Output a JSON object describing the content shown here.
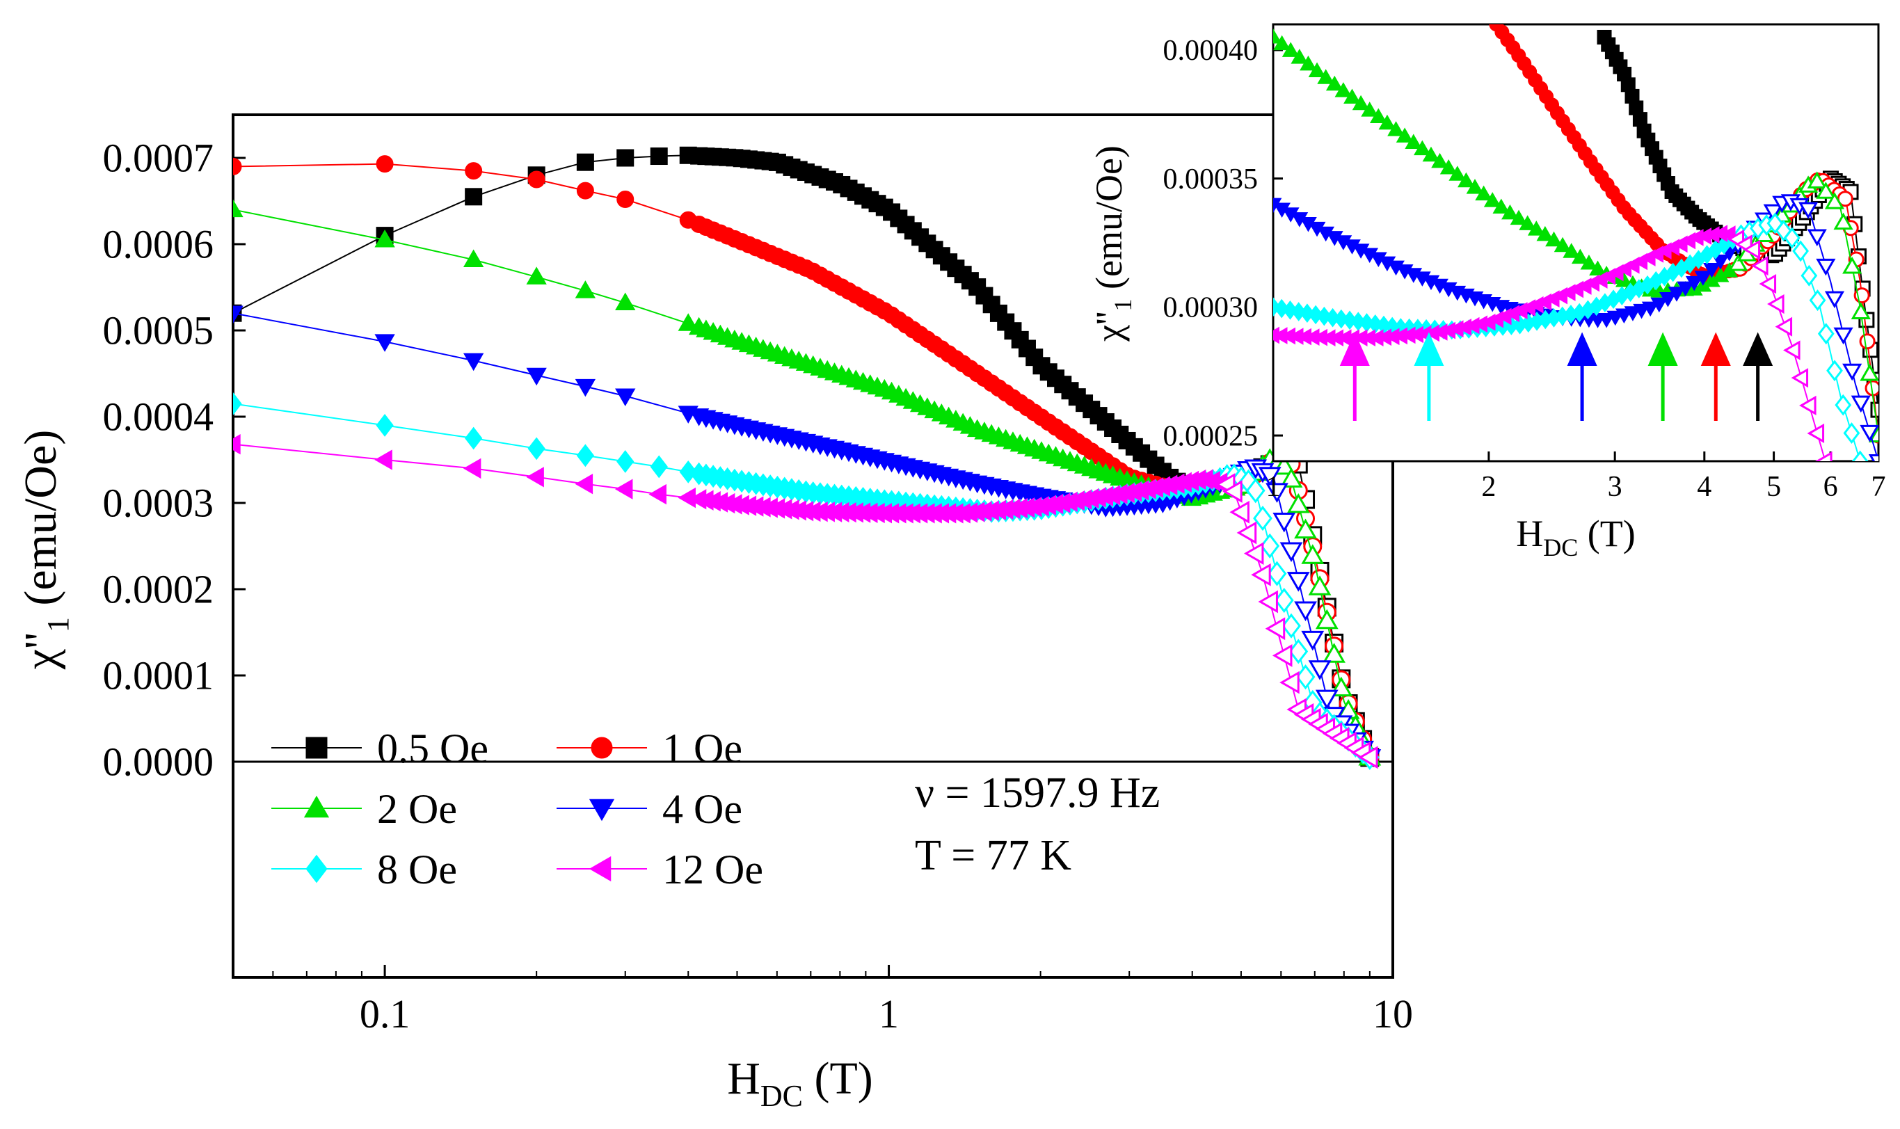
{
  "chart_data": [
    {
      "type": "line",
      "x_scale": "log",
      "xlim": [
        0.05,
        10
      ],
      "ylim": [
        -0.00025,
        0.00075
      ],
      "xlabel": "H",
      "xlabel_sub": "DC",
      "xlabel_unit": " (T)",
      "ylabel": "χ''",
      "ylabel_sub": "1",
      "ylabel_unit": " (emu/Oe)",
      "x_ticks": [
        {
          "v": 0.1,
          "label": "0.1"
        },
        {
          "v": 1,
          "label": "1"
        },
        {
          "v": 10,
          "label": "10"
        }
      ],
      "y_ticks": [
        {
          "v": 0.0,
          "label": "0.0000"
        },
        {
          "v": 0.0001,
          "label": "0.0001"
        },
        {
          "v": 0.0002,
          "label": "0.0002"
        },
        {
          "v": 0.0003,
          "label": "0.0003"
        },
        {
          "v": 0.0004,
          "label": "0.0004"
        },
        {
          "v": 0.0005,
          "label": "0.0005"
        },
        {
          "v": 0.0006,
          "label": "0.0006"
        },
        {
          "v": 0.0007,
          "label": "0.0007"
        }
      ],
      "zero_line": true,
      "legend_position": "bottom-left",
      "annotations": [
        "ν = 1597.9 Hz",
        "T = 77 K"
      ],
      "series": [
        {
          "name": "0.5 Oe",
          "color": "#000000",
          "marker": "square",
          "x": [
            0.05,
            0.1,
            0.15,
            0.2,
            0.25,
            0.3,
            0.35,
            0.4,
            0.5,
            0.6,
            0.8,
            1.0,
            1.5,
            2.0,
            3.0,
            3.6,
            4.0,
            5.0,
            6.0,
            6.5,
            7.0,
            8.0,
            9.0
          ],
          "y": [
            0.00052,
            0.00061,
            0.000655,
            0.00068,
            0.000695,
            0.0007,
            0.000702,
            0.000703,
            0.0007,
            0.000695,
            0.00067,
            0.00064,
            0.00055,
            0.00046,
            0.00037,
            0.00033,
            0.000315,
            0.00033,
            0.00035,
            0.000345,
            0.00025,
            8e-05,
            5e-06
          ]
        },
        {
          "name": "1 Oe",
          "color": "#ff0000",
          "marker": "circle",
          "x": [
            0.05,
            0.1,
            0.15,
            0.2,
            0.25,
            0.3,
            0.4,
            0.5,
            0.7,
            1.0,
            1.5,
            2.0,
            3.0,
            4.0,
            5.0,
            5.8,
            6.3,
            7.0,
            8.0,
            9.0
          ],
          "y": [
            0.00069,
            0.000693,
            0.000685,
            0.000675,
            0.000662,
            0.000652,
            0.000628,
            0.000605,
            0.00057,
            0.00052,
            0.00045,
            0.0004,
            0.00033,
            0.00031,
            0.00032,
            0.00035,
            0.000345,
            0.00024,
            8e-05,
            5e-06
          ]
        },
        {
          "name": "2 Oe",
          "color": "#00e000",
          "marker": "triangle-up",
          "x": [
            0.05,
            0.1,
            0.15,
            0.2,
            0.25,
            0.3,
            0.4,
            0.5,
            0.7,
            1.0,
            1.5,
            2.0,
            3.0,
            4.0,
            5.0,
            5.7,
            6.2,
            7.0,
            8.0,
            9.0
          ],
          "y": [
            0.00064,
            0.000605,
            0.000582,
            0.000562,
            0.000546,
            0.000532,
            0.000508,
            0.000488,
            0.00046,
            0.00043,
            0.000385,
            0.00036,
            0.000325,
            0.000305,
            0.00032,
            0.00035,
            0.00034,
            0.00023,
            7e-05,
            5e-06
          ]
        },
        {
          "name": "4 Oe",
          "color": "#0000ff",
          "marker": "triangle-down",
          "x": [
            0.05,
            0.1,
            0.15,
            0.2,
            0.25,
            0.3,
            0.4,
            0.5,
            0.7,
            1.0,
            1.5,
            2.0,
            2.7,
            3.5,
            4.5,
            5.3,
            5.8,
            6.5,
            7.5,
            9.0
          ],
          "y": [
            0.00052,
            0.000487,
            0.000465,
            0.000448,
            0.000435,
            0.000424,
            0.000404,
            0.00039,
            0.00037,
            0.000348,
            0.000323,
            0.000308,
            0.000295,
            0.0003,
            0.000322,
            0.000342,
            0.00033,
            0.00021,
            6e-05,
            5e-06
          ]
        },
        {
          "name": "8 Oe",
          "color": "#00ffff",
          "marker": "diamond",
          "x": [
            0.05,
            0.1,
            0.15,
            0.2,
            0.25,
            0.3,
            0.35,
            0.4,
            0.5,
            0.7,
            1.0,
            1.6,
            2.0,
            3.0,
            4.0,
            4.8,
            5.3,
            6.0,
            7.0,
            9.0
          ],
          "y": [
            0.000415,
            0.00039,
            0.000375,
            0.000363,
            0.000355,
            0.000348,
            0.000342,
            0.000336,
            0.000326,
            0.000312,
            0.000302,
            0.00029,
            0.000293,
            0.00031,
            0.00032,
            0.000332,
            0.000322,
            0.0002,
            6e-05,
            5e-06
          ]
        },
        {
          "name": "12 Oe",
          "color": "#ff00ff",
          "marker": "triangle-left",
          "x": [
            0.05,
            0.1,
            0.15,
            0.2,
            0.25,
            0.3,
            0.35,
            0.4,
            0.5,
            0.7,
            1.0,
            1.4,
            2.0,
            3.0,
            4.2,
            4.8,
            5.5,
            6.5,
            9.0
          ],
          "y": [
            0.000368,
            0.00035,
            0.00034,
            0.00033,
            0.000322,
            0.000316,
            0.00031,
            0.000306,
            0.000298,
            0.00029,
            0.000288,
            0.000288,
            0.000296,
            0.000312,
            0.000328,
            0.00032,
            0.00022,
            6e-05,
            5e-06
          ]
        }
      ]
    },
    {
      "type": "line",
      "x_scale": "log",
      "xlim": [
        1,
        7
      ],
      "ylim": [
        0.00024,
        0.00041
      ],
      "xlabel": "H",
      "xlabel_sub": "DC",
      "xlabel_unit": " (T)",
      "ylabel": "χ''",
      "ylabel_sub": "1",
      "ylabel_unit": " (emu/Oe)",
      "x_ticks": [
        {
          "v": 1,
          "label": "1"
        },
        {
          "v": 2,
          "label": "2"
        },
        {
          "v": 3,
          "label": "3"
        },
        {
          "v": 4,
          "label": "4"
        },
        {
          "v": 5,
          "label": "5"
        },
        {
          "v": 6,
          "label": "6"
        },
        {
          "v": 7,
          "label": "7"
        }
      ],
      "y_ticks": [
        {
          "v": 0.00025,
          "label": "0.00025"
        },
        {
          "v": 0.0003,
          "label": "0.00030"
        },
        {
          "v": 0.00035,
          "label": "0.00035"
        },
        {
          "v": 0.0004,
          "label": "0.00040"
        }
      ],
      "arrows": [
        {
          "x": 1.3,
          "color": "#ff00ff"
        },
        {
          "x": 1.65,
          "color": "#00ffff"
        },
        {
          "x": 2.7,
          "color": "#0000ff"
        },
        {
          "x": 3.5,
          "color": "#00e000"
        },
        {
          "x": 4.15,
          "color": "#ff0000"
        },
        {
          "x": 4.75,
          "color": "#000000"
        }
      ],
      "series": [
        {
          "name": "0.5 Oe",
          "color": "#000000",
          "marker": "square",
          "x": [
            2.9,
            3.1,
            3.3,
            3.6,
            3.9,
            4.2,
            4.6,
            5.0,
            5.5,
            6.0,
            6.4,
            6.7,
            7.0
          ],
          "y": [
            0.000405,
            0.00039,
            0.000368,
            0.000345,
            0.000335,
            0.000328,
            0.000322,
            0.00032,
            0.000335,
            0.00035,
            0.000345,
            0.0003,
            0.00026
          ]
        },
        {
          "name": "1 Oe",
          "color": "#ff0000",
          "marker": "circle",
          "x": [
            2.05,
            2.2,
            2.5,
            2.8,
            3.1,
            3.5,
            4.0,
            4.5,
            5.0,
            5.5,
            5.8,
            6.3,
            6.6,
            6.8,
            7.0
          ],
          "y": [
            0.00041,
            0.000398,
            0.000375,
            0.000355,
            0.000338,
            0.000322,
            0.000312,
            0.000315,
            0.000328,
            0.000345,
            0.00035,
            0.000342,
            0.00031,
            0.00028,
            0.00025
          ]
        },
        {
          "name": "2 Oe",
          "color": "#00e000",
          "marker": "triangle-up",
          "x": [
            1.0,
            1.2,
            1.5,
            1.8,
            2.1,
            2.5,
            2.9,
            3.4,
            3.9,
            4.4,
            5.0,
            5.7,
            6.2,
            6.6,
            7.0
          ],
          "y": [
            0.000405,
            0.000388,
            0.000368,
            0.000352,
            0.000338,
            0.000325,
            0.000313,
            0.000306,
            0.000307,
            0.000315,
            0.000332,
            0.00035,
            0.000338,
            0.0003,
            0.00025
          ]
        },
        {
          "name": "4 Oe",
          "color": "#0000ff",
          "marker": "triangle-down",
          "x": [
            1.0,
            1.2,
            1.5,
            1.8,
            2.1,
            2.5,
            2.9,
            3.4,
            4.0,
            4.6,
            5.2,
            5.6,
            6.0,
            6.5,
            7.0
          ],
          "y": [
            0.00034,
            0.000328,
            0.000315,
            0.000306,
            0.0003,
            0.000296,
            0.000295,
            0.0003,
            0.000312,
            0.000328,
            0.000342,
            0.000338,
            0.00031,
            0.00027,
            0.00024
          ]
        },
        {
          "name": "8 Oe",
          "color": "#00ffff",
          "marker": "diamond",
          "x": [
            1.0,
            1.2,
            1.5,
            1.8,
            2.2,
            2.7,
            3.3,
            3.9,
            4.5,
            5.0,
            5.4,
            5.8,
            6.2,
            6.6
          ],
          "y": [
            0.0003,
            0.000296,
            0.000292,
            0.000291,
            0.000293,
            0.000298,
            0.000308,
            0.000318,
            0.000328,
            0.000333,
            0.000325,
            0.0003,
            0.000265,
            0.00024
          ]
        },
        {
          "name": "12 Oe",
          "color": "#ff00ff",
          "marker": "triangle-left",
          "x": [
            1.0,
            1.2,
            1.4,
            1.7,
            2.0,
            2.4,
            2.9,
            3.4,
            3.9,
            4.3,
            4.7,
            5.0,
            5.3,
            5.6,
            5.9
          ],
          "y": [
            0.000289,
            0.000288,
            0.000288,
            0.00029,
            0.000294,
            0.000302,
            0.000311,
            0.00032,
            0.000327,
            0.000329,
            0.000322,
            0.000305,
            0.000285,
            0.000262,
            0.00024
          ]
        }
      ]
    }
  ]
}
